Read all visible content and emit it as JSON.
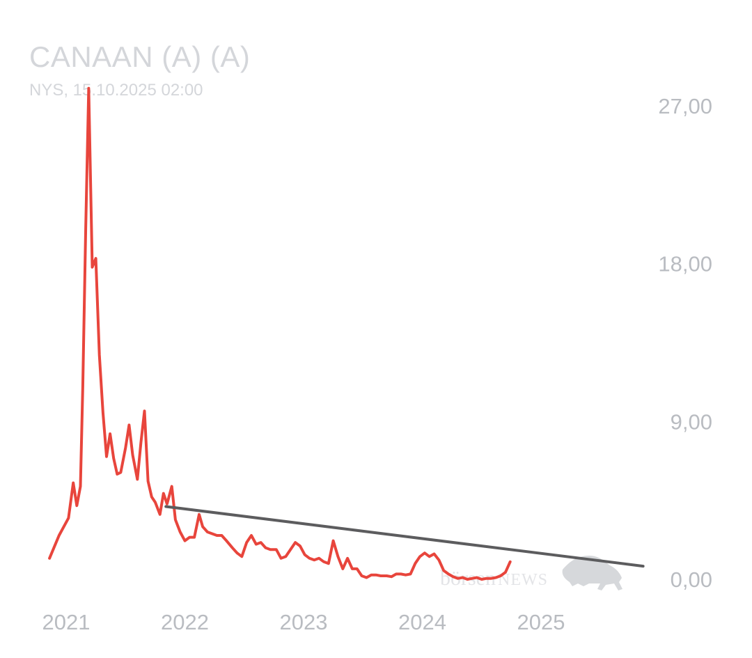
{
  "header": {
    "title": "CANAAN (A) (A)",
    "subtitle": "NYS, 15.10.2025 02:00"
  },
  "watermark": {
    "text_left": "börsen",
    "text_right": "NEWS"
  },
  "colors": {
    "series": "#e8453c",
    "trendline": "#5c5c5e",
    "axis_text": "#b9bcc1",
    "title": "#d4d6da",
    "watermark": "#d6d8db"
  },
  "chart_data": {
    "type": "line",
    "title": "CANAAN (A) (A)",
    "subtitle": "NYS, 15.10.2025 02:00",
    "xlabel": "",
    "ylabel": "",
    "ylim": [
      -0.6,
      28
    ],
    "xlim": [
      2020.85,
      2025.87
    ],
    "grid": false,
    "y_ticks": [
      {
        "value": 27,
        "label": "27,00"
      },
      {
        "value": 18,
        "label": "18,00"
      },
      {
        "value": 9,
        "label": "9,00"
      },
      {
        "value": 0,
        "label": "0,00"
      }
    ],
    "x_ticks": [
      {
        "value": 2021.0,
        "label": "2021"
      },
      {
        "value": 2022.0,
        "label": "2022"
      },
      {
        "value": 2023.0,
        "label": "2023"
      },
      {
        "value": 2024.0,
        "label": "2024"
      },
      {
        "value": 2025.0,
        "label": "2025"
      }
    ],
    "series": [
      {
        "points": [
          [
            2020.86,
            1.2
          ],
          [
            2020.94,
            2.5
          ],
          [
            2021.02,
            3.5
          ],
          [
            2021.06,
            5.5
          ],
          [
            2021.09,
            4.2
          ],
          [
            2021.12,
            5.3
          ],
          [
            2021.14,
            11.0
          ],
          [
            2021.165,
            20.0
          ],
          [
            2021.19,
            28.0
          ],
          [
            2021.22,
            17.8
          ],
          [
            2021.25,
            18.3
          ],
          [
            2021.28,
            12.8
          ],
          [
            2021.31,
            9.5
          ],
          [
            2021.34,
            7.0
          ],
          [
            2021.37,
            8.3
          ],
          [
            2021.4,
            6.9
          ],
          [
            2021.43,
            6.0
          ],
          [
            2021.46,
            6.1
          ],
          [
            2021.5,
            7.5
          ],
          [
            2021.53,
            8.8
          ],
          [
            2021.56,
            7.1
          ],
          [
            2021.6,
            5.7
          ],
          [
            2021.63,
            7.8
          ],
          [
            2021.66,
            9.6
          ],
          [
            2021.69,
            5.6
          ],
          [
            2021.72,
            4.7
          ],
          [
            2021.75,
            4.4
          ],
          [
            2021.79,
            3.7
          ],
          [
            2021.82,
            4.9
          ],
          [
            2021.85,
            4.3
          ],
          [
            2021.89,
            5.3
          ],
          [
            2021.92,
            3.4
          ],
          [
            2021.96,
            2.7
          ],
          [
            2022.0,
            2.2
          ],
          [
            2022.04,
            2.4
          ],
          [
            2022.08,
            2.4
          ],
          [
            2022.12,
            3.7
          ],
          [
            2022.15,
            3.0
          ],
          [
            2022.19,
            2.7
          ],
          [
            2022.23,
            2.6
          ],
          [
            2022.27,
            2.5
          ],
          [
            2022.31,
            2.5
          ],
          [
            2022.35,
            2.2
          ],
          [
            2022.4,
            1.8
          ],
          [
            2022.44,
            1.5
          ],
          [
            2022.48,
            1.3
          ],
          [
            2022.52,
            2.1
          ],
          [
            2022.56,
            2.5
          ],
          [
            2022.6,
            2.0
          ],
          [
            2022.64,
            2.1
          ],
          [
            2022.68,
            1.8
          ],
          [
            2022.72,
            1.7
          ],
          [
            2022.77,
            1.7
          ],
          [
            2022.81,
            1.2
          ],
          [
            2022.85,
            1.3
          ],
          [
            2022.89,
            1.7
          ],
          [
            2022.93,
            2.1
          ],
          [
            2022.97,
            1.9
          ],
          [
            2023.01,
            1.4
          ],
          [
            2023.05,
            1.2
          ],
          [
            2023.09,
            1.1
          ],
          [
            2023.13,
            1.2
          ],
          [
            2023.17,
            1.0
          ],
          [
            2023.21,
            0.9
          ],
          [
            2023.25,
            2.2
          ],
          [
            2023.29,
            1.3
          ],
          [
            2023.33,
            0.6
          ],
          [
            2023.37,
            1.2
          ],
          [
            2023.41,
            0.6
          ],
          [
            2023.45,
            0.6
          ],
          [
            2023.49,
            0.2
          ],
          [
            2023.53,
            0.1
          ],
          [
            2023.57,
            0.25
          ],
          [
            2023.61,
            0.25
          ],
          [
            2023.65,
            0.2
          ],
          [
            2023.7,
            0.2
          ],
          [
            2023.74,
            0.15
          ],
          [
            2023.78,
            0.3
          ],
          [
            2023.82,
            0.3
          ],
          [
            2023.86,
            0.25
          ],
          [
            2023.9,
            0.3
          ],
          [
            2023.94,
            0.9
          ],
          [
            2023.98,
            1.3
          ],
          [
            2024.02,
            1.5
          ],
          [
            2024.06,
            1.3
          ],
          [
            2024.1,
            1.45
          ],
          [
            2024.14,
            1.1
          ],
          [
            2024.18,
            0.5
          ],
          [
            2024.22,
            0.3
          ],
          [
            2024.26,
            0.15
          ],
          [
            2024.3,
            0.05
          ],
          [
            2024.34,
            0.1
          ],
          [
            2024.38,
            0.0
          ],
          [
            2024.42,
            0.05
          ],
          [
            2024.46,
            0.1
          ],
          [
            2024.5,
            0.0
          ],
          [
            2024.54,
            0.05
          ],
          [
            2024.58,
            0.05
          ],
          [
            2024.62,
            0.1
          ],
          [
            2024.66,
            0.2
          ],
          [
            2024.7,
            0.4
          ],
          [
            2024.74,
            1.0
          ]
        ]
      }
    ],
    "trendline": {
      "from": [
        2021.84,
        4.15
      ],
      "to": [
        2025.86,
        0.75
      ]
    }
  }
}
